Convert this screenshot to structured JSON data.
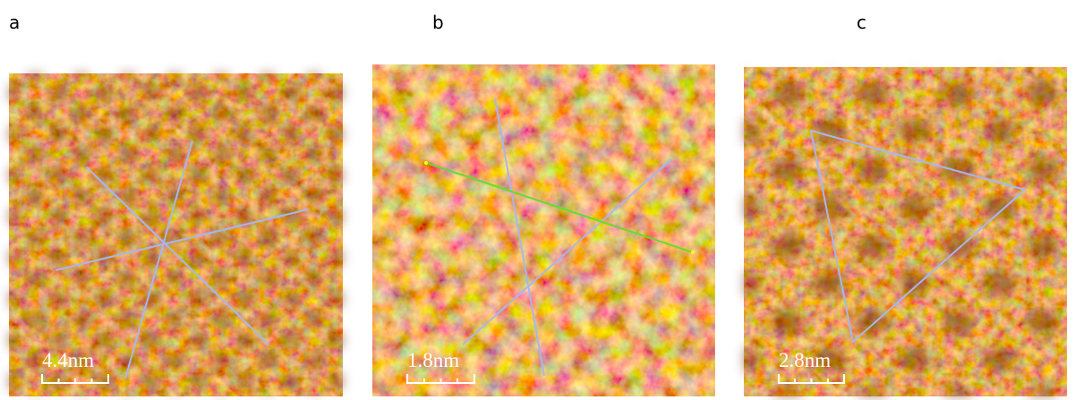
{
  "panels": [
    {
      "label": "a",
      "scale_bar": "4.4nm"
    },
    {
      "label": "b",
      "scale_bar": "1.8nm"
    },
    {
      "label": "c",
      "scale_bar": "2.8nm"
    }
  ]
}
